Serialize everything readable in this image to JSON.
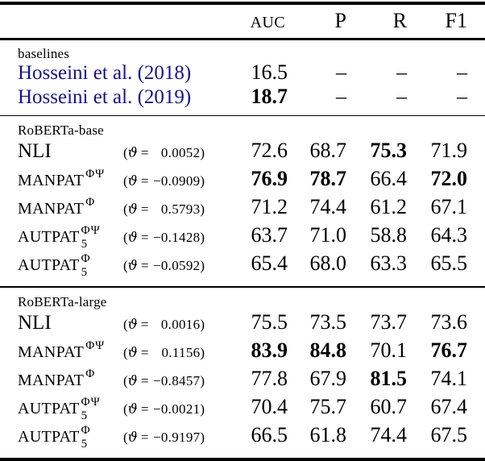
{
  "colors": {
    "citation": "#14148C"
  },
  "header": {
    "auc": "AUC",
    "p": "P",
    "r": "R",
    "f1": "F1"
  },
  "theta": {
    "open": "(",
    "symbol": "ϑ",
    "eq": "=",
    "close": ")"
  },
  "sections": [
    {
      "title": "baselines",
      "rows": [
        {
          "label": "Hosseini et al. (2018)",
          "auc": "16.5",
          "p": "–",
          "r": "–",
          "f1": "–"
        },
        {
          "label": "Hosseini et al. (2019)",
          "auc": "18.7",
          "p": "–",
          "r": "–",
          "f1": "–"
        }
      ]
    },
    {
      "title": "RoBERTa-base",
      "rows": [
        {
          "label": "NLI",
          "sup": "",
          "sub": "",
          "theta": "0.0052",
          "auc": "72.6",
          "p": "68.7",
          "r": "75.3",
          "f1": "71.9"
        },
        {
          "label": "MANPAT",
          "sup": "ΦΨ",
          "sub": "",
          "theta": "−0.0909",
          "auc": "76.9",
          "p": "78.7",
          "r": "66.4",
          "f1": "72.0"
        },
        {
          "label": "MANPAT",
          "sup": "Φ",
          "sub": "",
          "theta": "0.5793",
          "auc": "71.2",
          "p": "74.4",
          "r": "61.2",
          "f1": "67.1"
        },
        {
          "label": "AUTPAT",
          "sup": "ΦΨ",
          "sub": "5",
          "theta": "−0.1428",
          "auc": "63.7",
          "p": "71.0",
          "r": "58.8",
          "f1": "64.3"
        },
        {
          "label": "AUTPAT",
          "sup": "Φ",
          "sub": "5",
          "theta": "−0.0592",
          "auc": "65.4",
          "p": "68.0",
          "r": "63.3",
          "f1": "65.5"
        }
      ]
    },
    {
      "title": "RoBERTa-large",
      "rows": [
        {
          "label": "NLI",
          "sup": "",
          "sub": "",
          "theta": "0.0016",
          "auc": "75.5",
          "p": "73.5",
          "r": "73.7",
          "f1": "73.6"
        },
        {
          "label": "MANPAT",
          "sup": "ΦΨ",
          "sub": "",
          "theta": "0.1156",
          "auc": "83.9",
          "p": "84.8",
          "r": "70.1",
          "f1": "76.7"
        },
        {
          "label": "MANPAT",
          "sup": "Φ",
          "sub": "",
          "theta": "−0.8457",
          "auc": "77.8",
          "p": "67.9",
          "r": "81.5",
          "f1": "74.1"
        },
        {
          "label": "AUTPAT",
          "sup": "ΦΨ",
          "sub": "5",
          "theta": "−0.0021",
          "auc": "70.4",
          "p": "75.7",
          "r": "60.7",
          "f1": "67.4"
        },
        {
          "label": "AUTPAT",
          "sup": "Φ",
          "sub": "5",
          "theta": "−0.9197",
          "auc": "66.5",
          "p": "61.8",
          "r": "74.4",
          "f1": "67.5"
        }
      ]
    }
  ]
}
